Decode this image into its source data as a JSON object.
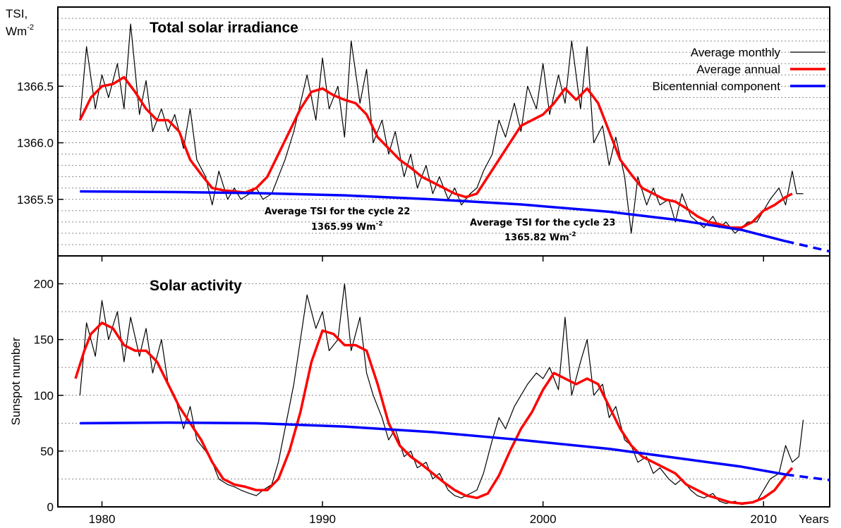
{
  "chart_data": [
    {
      "type": "line",
      "title": "Total solar irradiance",
      "ylabel_line1": "TSI,",
      "ylabel_unit": "Wm",
      "ylabel_exp": "-2",
      "ylim": [
        1365.0,
        1367.2
      ],
      "yticks": [
        1365.5,
        1366.0,
        1366.5
      ],
      "ytick_labels": [
        "1365.5",
        "1366.0",
        "1366.5"
      ],
      "xlim": [
        1978,
        2013
      ],
      "grid": "horizontal dotted",
      "legend_position": "top-right",
      "legend": [
        {
          "label": "Average monthly",
          "color": "#000000"
        },
        {
          "label": "Average annual",
          "color": "#ff0000"
        },
        {
          "label": "Bicentennial component",
          "color": "#0000ff"
        }
      ],
      "annotations": [
        {
          "line1": "Average TSI for the cycle 22",
          "value": "1365.99",
          "unit": "Wm",
          "exp": "-2",
          "x": 1988.2,
          "y": 1365.42
        },
        {
          "line1": "Average TSI for the cycle 23",
          "value": "1365.82",
          "unit": "Wm",
          "exp": "-2",
          "x": 2000.5,
          "y": 1365.37
        }
      ],
      "series": [
        {
          "name": "Average monthly",
          "color": "#000000",
          "x": [
            1979.0,
            1979.3,
            1979.7,
            1980.0,
            1980.3,
            1980.7,
            1981.0,
            1981.3,
            1981.7,
            1982.0,
            1982.3,
            1982.7,
            1983.0,
            1983.3,
            1983.7,
            1984.0,
            1984.3,
            1984.7,
            1985.0,
            1985.3,
            1985.7,
            1986.0,
            1986.3,
            1986.7,
            1987.0,
            1987.3,
            1987.7,
            1988.0,
            1988.3,
            1988.7,
            1989.0,
            1989.3,
            1989.7,
            1990.0,
            1990.3,
            1990.7,
            1991.0,
            1991.3,
            1991.7,
            1992.0,
            1992.3,
            1992.7,
            1993.0,
            1993.3,
            1993.7,
            1994.0,
            1994.3,
            1994.7,
            1995.0,
            1995.3,
            1995.7,
            1996.0,
            1996.3,
            1996.7,
            1997.0,
            1997.3,
            1997.7,
            1998.0,
            1998.3,
            1998.7,
            1999.0,
            1999.3,
            1999.7,
            2000.0,
            2000.3,
            2000.7,
            2001.0,
            2001.3,
            2001.7,
            2002.0,
            2002.3,
            2002.7,
            2003.0,
            2003.3,
            2003.7,
            2004.0,
            2004.3,
            2004.7,
            2005.0,
            2005.3,
            2005.7,
            2006.0,
            2006.3,
            2006.7,
            2007.0,
            2007.3,
            2007.7,
            2008.0,
            2008.3,
            2008.7,
            2009.0,
            2009.3,
            2009.7,
            2010.0,
            2010.3,
            2010.7,
            2011.0,
            2011.3,
            2011.5,
            2011.8
          ],
          "y": [
            1366.2,
            1366.85,
            1366.3,
            1366.6,
            1366.4,
            1366.7,
            1366.3,
            1367.05,
            1366.25,
            1366.55,
            1366.1,
            1366.3,
            1366.1,
            1366.25,
            1365.95,
            1366.3,
            1365.85,
            1365.7,
            1365.45,
            1365.75,
            1365.5,
            1365.6,
            1365.5,
            1365.55,
            1365.6,
            1365.5,
            1365.55,
            1365.7,
            1365.85,
            1366.1,
            1366.35,
            1366.6,
            1366.2,
            1366.75,
            1366.3,
            1366.5,
            1366.05,
            1366.9,
            1366.35,
            1366.65,
            1366.0,
            1366.2,
            1365.9,
            1366.1,
            1365.7,
            1365.9,
            1365.6,
            1365.8,
            1365.55,
            1365.7,
            1365.5,
            1365.6,
            1365.45,
            1365.55,
            1365.6,
            1365.75,
            1365.9,
            1366.2,
            1366.05,
            1366.35,
            1366.1,
            1366.5,
            1366.3,
            1366.7,
            1366.25,
            1366.6,
            1366.35,
            1366.9,
            1366.3,
            1366.85,
            1366.0,
            1366.15,
            1365.8,
            1366.05,
            1365.7,
            1365.2,
            1365.7,
            1365.45,
            1365.6,
            1365.45,
            1365.5,
            1365.3,
            1365.55,
            1365.35,
            1365.3,
            1365.25,
            1365.35,
            1365.25,
            1365.3,
            1365.2,
            1365.25,
            1365.3,
            1365.3,
            1365.4,
            1365.5,
            1365.6,
            1365.45,
            1365.75,
            1365.55,
            1365.55
          ]
        },
        {
          "name": "Average annual",
          "color": "#ff0000",
          "x": [
            1979.0,
            1979.5,
            1980.0,
            1980.5,
            1981.0,
            1981.5,
            1982.0,
            1982.5,
            1983.0,
            1983.5,
            1984.0,
            1984.5,
            1985.0,
            1985.5,
            1986.0,
            1986.5,
            1987.0,
            1987.5,
            1988.0,
            1988.5,
            1989.0,
            1989.5,
            1990.0,
            1990.5,
            1991.0,
            1991.5,
            1992.0,
            1992.5,
            1993.0,
            1993.5,
            1994.0,
            1994.5,
            1995.0,
            1995.5,
            1996.0,
            1996.5,
            1997.0,
            1997.5,
            1998.0,
            1998.5,
            1999.0,
            1999.5,
            2000.0,
            2000.5,
            2001.0,
            2001.5,
            2002.0,
            2002.5,
            2003.0,
            2003.5,
            2004.0,
            2004.5,
            2005.0,
            2005.5,
            2006.0,
            2006.5,
            2007.0,
            2007.5,
            2008.0,
            2008.5,
            2009.0,
            2009.5,
            2010.0,
            2010.5,
            2011.0,
            2011.3
          ],
          "y": [
            1366.2,
            1366.4,
            1366.5,
            1366.52,
            1366.58,
            1366.45,
            1366.3,
            1366.2,
            1366.2,
            1366.1,
            1365.85,
            1365.72,
            1365.6,
            1365.58,
            1365.57,
            1365.56,
            1365.6,
            1365.7,
            1365.9,
            1366.1,
            1366.3,
            1366.45,
            1366.48,
            1366.42,
            1366.38,
            1366.35,
            1366.25,
            1366.05,
            1365.95,
            1365.85,
            1365.78,
            1365.7,
            1365.65,
            1365.6,
            1365.55,
            1365.52,
            1365.55,
            1365.7,
            1365.85,
            1366.0,
            1366.15,
            1366.2,
            1366.25,
            1366.35,
            1366.48,
            1366.38,
            1366.48,
            1366.35,
            1366.1,
            1365.85,
            1365.72,
            1365.6,
            1365.55,
            1365.5,
            1365.48,
            1365.42,
            1365.35,
            1365.3,
            1365.28,
            1365.25,
            1365.25,
            1365.3,
            1365.4,
            1365.45,
            1365.52,
            1365.55
          ]
        },
        {
          "name": "Bicentennial component",
          "color": "#0000ff",
          "x": [
            1979,
            1983,
            1987,
            1991,
            1995,
            1999,
            2003,
            2006,
            2009,
            2011,
            2013
          ],
          "y": [
            1365.57,
            1365.565,
            1365.555,
            1365.535,
            1365.5,
            1365.455,
            1365.39,
            1365.32,
            1365.23,
            1365.13,
            1365.04
          ],
          "dashed_from_x": 2011.2
        }
      ]
    },
    {
      "type": "line",
      "title": "Solar activity",
      "ylabel": "Sunspot number",
      "ylim": [
        0,
        225
      ],
      "yticks": [
        0,
        50,
        100,
        150,
        200
      ],
      "ytick_labels": [
        "0",
        "50",
        "100",
        "150",
        "200"
      ],
      "xlim": [
        1978,
        2013
      ],
      "xticks": [
        1980,
        1990,
        2000,
        2010
      ],
      "xtick_labels": [
        "1980",
        "1990",
        "2000",
        "2010"
      ],
      "xlabel": "Years",
      "grid": "horizontal dotted",
      "series": [
        {
          "name": "Average monthly",
          "color": "#000000",
          "x": [
            1979.0,
            1979.3,
            1979.7,
            1980.0,
            1980.3,
            1980.7,
            1981.0,
            1981.3,
            1981.7,
            1982.0,
            1982.3,
            1982.7,
            1983.0,
            1983.3,
            1983.7,
            1984.0,
            1984.3,
            1984.7,
            1985.0,
            1985.3,
            1985.7,
            1986.0,
            1986.3,
            1986.7,
            1987.0,
            1987.3,
            1987.7,
            1988.0,
            1988.3,
            1988.7,
            1989.0,
            1989.3,
            1989.7,
            1990.0,
            1990.3,
            1990.7,
            1991.0,
            1991.3,
            1991.7,
            1992.0,
            1992.3,
            1992.7,
            1993.0,
            1993.3,
            1993.7,
            1994.0,
            1994.3,
            1994.7,
            1995.0,
            1995.3,
            1995.7,
            1996.0,
            1996.3,
            1996.7,
            1997.0,
            1997.3,
            1997.7,
            1998.0,
            1998.3,
            1998.7,
            1999.0,
            1999.3,
            1999.7,
            2000.0,
            2000.3,
            2000.7,
            2001.0,
            2001.3,
            2001.7,
            2002.0,
            2002.3,
            2002.7,
            2003.0,
            2003.3,
            2003.7,
            2004.0,
            2004.3,
            2004.7,
            2005.0,
            2005.3,
            2005.7,
            2006.0,
            2006.3,
            2006.7,
            2007.0,
            2007.3,
            2007.7,
            2008.0,
            2008.3,
            2008.7,
            2009.0,
            2009.3,
            2009.7,
            2010.0,
            2010.3,
            2010.7,
            2011.0,
            2011.3,
            2011.6,
            2011.8
          ],
          "y": [
            100,
            165,
            135,
            185,
            150,
            175,
            130,
            170,
            135,
            160,
            120,
            150,
            110,
            100,
            70,
            90,
            60,
            50,
            40,
            25,
            20,
            18,
            15,
            12,
            10,
            15,
            20,
            40,
            70,
            110,
            150,
            190,
            160,
            175,
            140,
            150,
            200,
            140,
            170,
            120,
            100,
            80,
            60,
            70,
            45,
            50,
            35,
            40,
            25,
            30,
            15,
            10,
            8,
            12,
            15,
            30,
            60,
            80,
            70,
            90,
            100,
            110,
            120,
            115,
            125,
            105,
            170,
            100,
            130,
            150,
            100,
            110,
            80,
            90,
            60,
            55,
            40,
            45,
            30,
            35,
            25,
            20,
            25,
            15,
            10,
            8,
            12,
            5,
            3,
            5,
            2,
            3,
            5,
            15,
            25,
            30,
            55,
            40,
            45,
            78
          ]
        },
        {
          "name": "Average annual",
          "color": "#ff0000",
          "x": [
            1978.8,
            1979.2,
            1979.5,
            1980.0,
            1980.5,
            1981.0,
            1981.5,
            1982.0,
            1982.5,
            1983.0,
            1983.5,
            1984.0,
            1984.5,
            1985.0,
            1985.5,
            1986.0,
            1986.5,
            1987.0,
            1987.5,
            1988.0,
            1988.5,
            1989.0,
            1989.5,
            1990.0,
            1990.5,
            1991.0,
            1991.5,
            1992.0,
            1992.5,
            1993.0,
            1993.5,
            1994.0,
            1994.5,
            1995.0,
            1995.5,
            1996.0,
            1996.5,
            1997.0,
            1997.5,
            1998.0,
            1998.5,
            1999.0,
            1999.5,
            2000.0,
            2000.5,
            2001.0,
            2001.5,
            2002.0,
            2002.5,
            2003.0,
            2003.5,
            2004.0,
            2004.5,
            2005.0,
            2005.5,
            2006.0,
            2006.5,
            2007.0,
            2007.5,
            2008.0,
            2008.5,
            2009.0,
            2009.5,
            2010.0,
            2010.5,
            2011.0,
            2011.3
          ],
          "y": [
            115,
            140,
            155,
            165,
            160,
            145,
            140,
            140,
            130,
            110,
            90,
            75,
            60,
            40,
            25,
            20,
            18,
            15,
            15,
            25,
            50,
            85,
            130,
            158,
            155,
            145,
            145,
            140,
            110,
            75,
            55,
            45,
            38,
            30,
            22,
            15,
            10,
            8,
            12,
            28,
            50,
            70,
            85,
            105,
            120,
            115,
            110,
            115,
            110,
            90,
            70,
            55,
            45,
            40,
            35,
            30,
            20,
            15,
            10,
            7,
            4,
            3,
            4,
            8,
            15,
            28,
            35
          ]
        },
        {
          "name": "Bicentennial component",
          "color": "#0000ff",
          "x": [
            1979,
            1983,
            1987,
            1991,
            1995,
            1999,
            2003,
            2006,
            2009,
            2011,
            2013
          ],
          "y": [
            75,
            75.5,
            75,
            72,
            67,
            60,
            52,
            44,
            36,
            29,
            24
          ],
          "dashed_from_x": 2011.3
        }
      ]
    }
  ]
}
